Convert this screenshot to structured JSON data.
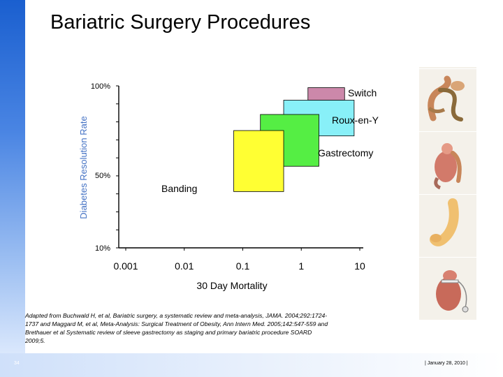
{
  "page": {
    "title": "Bariatric Surgery Procedures",
    "citation": "Adapted from Buchwald H, et al, Bariatric surgery, a systematic review and meta-analysis, JAMA. 2004;292:1724-1737 and Maggard M, et al, Meta-Analysis: Surgical Treatment of Obesity, Ann Intern Med. 2005;142:547-559 and Brethauer et al  Systematic review of sleeve gastrectomy as staging and primary bariatric procedure SOARD 2009;5.",
    "page_number": "34",
    "footer_date": "|  January 28, 2010   |"
  },
  "colors": {
    "sidebar": "#2b6fd8",
    "ylabel": "#4472c4",
    "switch": "#cc88aa",
    "roux_en_y": "#88f0f8",
    "gastrectomy": "#55ee44",
    "banding": "#ffff33"
  },
  "illustrations": [
    "duodenal-switch-icon",
    "roux-en-y-icon",
    "sleeve-gastrectomy-icon",
    "gastric-banding-icon"
  ],
  "chart_data": {
    "type": "scatter",
    "title": "",
    "xlabel": "30 Day Mortality",
    "ylabel": "Diabetes Resolution Rate",
    "x_scale": "log",
    "xlim": [
      0.001,
      10
    ],
    "x_ticks": [
      "0.001",
      "0.01",
      "0.1",
      "1",
      "10"
    ],
    "y_ticks": [
      "10%",
      "50%",
      "100%"
    ],
    "y_tick_values": [
      10,
      50,
      100
    ],
    "grid": false,
    "series": [
      {
        "name": "Switch",
        "x_range": [
          1.3,
          5.5
        ],
        "y_range": [
          92,
          99
        ],
        "color": "#cc88aa"
      },
      {
        "name": "Roux-en-Y",
        "x_range": [
          0.5,
          8.0
        ],
        "y_range": [
          72,
          92
        ],
        "color": "#88f0f8"
      },
      {
        "name": "Gastrectomy",
        "x_range": [
          0.2,
          2.0
        ],
        "y_range": [
          55,
          84
        ],
        "color": "#55ee44"
      },
      {
        "name": "Banding",
        "x_range": [
          0.07,
          0.5
        ],
        "y_range": [
          41,
          75
        ],
        "color": "#ffff33"
      }
    ]
  }
}
